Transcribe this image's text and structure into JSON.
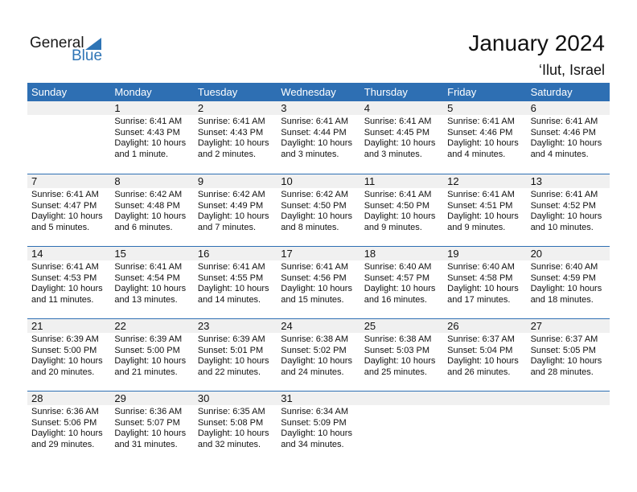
{
  "logo": {
    "general": "General",
    "blue": "Blue"
  },
  "title": "January 2024",
  "location": "‘Ilut, Israel",
  "colors": {
    "header": "#2e6fb3",
    "logo_blue": "#2e74b5"
  },
  "days": [
    "Sunday",
    "Monday",
    "Tuesday",
    "Wednesday",
    "Thursday",
    "Friday",
    "Saturday"
  ],
  "first_weekday": 1,
  "entries": [
    {
      "d": 1,
      "sr": "6:41 AM",
      "ss": "4:43 PM",
      "dl": "10 hours",
      "m": "and 1 minute."
    },
    {
      "d": 2,
      "sr": "6:41 AM",
      "ss": "4:43 PM",
      "dl": "10 hours",
      "m": "and 2 minutes."
    },
    {
      "d": 3,
      "sr": "6:41 AM",
      "ss": "4:44 PM",
      "dl": "10 hours",
      "m": "and 3 minutes."
    },
    {
      "d": 4,
      "sr": "6:41 AM",
      "ss": "4:45 PM",
      "dl": "10 hours",
      "m": "and 3 minutes."
    },
    {
      "d": 5,
      "sr": "6:41 AM",
      "ss": "4:46 PM",
      "dl": "10 hours",
      "m": "and 4 minutes."
    },
    {
      "d": 6,
      "sr": "6:41 AM",
      "ss": "4:46 PM",
      "dl": "10 hours",
      "m": "and 4 minutes."
    },
    {
      "d": 7,
      "sr": "6:41 AM",
      "ss": "4:47 PM",
      "dl": "10 hours",
      "m": "and 5 minutes."
    },
    {
      "d": 8,
      "sr": "6:42 AM",
      "ss": "4:48 PM",
      "dl": "10 hours",
      "m": "and 6 minutes."
    },
    {
      "d": 9,
      "sr": "6:42 AM",
      "ss": "4:49 PM",
      "dl": "10 hours",
      "m": "and 7 minutes."
    },
    {
      "d": 10,
      "sr": "6:42 AM",
      "ss": "4:50 PM",
      "dl": "10 hours",
      "m": "and 8 minutes."
    },
    {
      "d": 11,
      "sr": "6:41 AM",
      "ss": "4:50 PM",
      "dl": "10 hours",
      "m": "and 9 minutes."
    },
    {
      "d": 12,
      "sr": "6:41 AM",
      "ss": "4:51 PM",
      "dl": "10 hours",
      "m": "and 9 minutes."
    },
    {
      "d": 13,
      "sr": "6:41 AM",
      "ss": "4:52 PM",
      "dl": "10 hours",
      "m": "and 10 minutes."
    },
    {
      "d": 14,
      "sr": "6:41 AM",
      "ss": "4:53 PM",
      "dl": "10 hours",
      "m": "and 11 minutes."
    },
    {
      "d": 15,
      "sr": "6:41 AM",
      "ss": "4:54 PM",
      "dl": "10 hours",
      "m": "and 13 minutes."
    },
    {
      "d": 16,
      "sr": "6:41 AM",
      "ss": "4:55 PM",
      "dl": "10 hours",
      "m": "and 14 minutes."
    },
    {
      "d": 17,
      "sr": "6:41 AM",
      "ss": "4:56 PM",
      "dl": "10 hours",
      "m": "and 15 minutes."
    },
    {
      "d": 18,
      "sr": "6:40 AM",
      "ss": "4:57 PM",
      "dl": "10 hours",
      "m": "and 16 minutes."
    },
    {
      "d": 19,
      "sr": "6:40 AM",
      "ss": "4:58 PM",
      "dl": "10 hours",
      "m": "and 17 minutes."
    },
    {
      "d": 20,
      "sr": "6:40 AM",
      "ss": "4:59 PM",
      "dl": "10 hours",
      "m": "and 18 minutes."
    },
    {
      "d": 21,
      "sr": "6:39 AM",
      "ss": "5:00 PM",
      "dl": "10 hours",
      "m": "and 20 minutes."
    },
    {
      "d": 22,
      "sr": "6:39 AM",
      "ss": "5:00 PM",
      "dl": "10 hours",
      "m": "and 21 minutes."
    },
    {
      "d": 23,
      "sr": "6:39 AM",
      "ss": "5:01 PM",
      "dl": "10 hours",
      "m": "and 22 minutes."
    },
    {
      "d": 24,
      "sr": "6:38 AM",
      "ss": "5:02 PM",
      "dl": "10 hours",
      "m": "and 24 minutes."
    },
    {
      "d": 25,
      "sr": "6:38 AM",
      "ss": "5:03 PM",
      "dl": "10 hours",
      "m": "and 25 minutes."
    },
    {
      "d": 26,
      "sr": "6:37 AM",
      "ss": "5:04 PM",
      "dl": "10 hours",
      "m": "and 26 minutes."
    },
    {
      "d": 27,
      "sr": "6:37 AM",
      "ss": "5:05 PM",
      "dl": "10 hours",
      "m": "and 28 minutes."
    },
    {
      "d": 28,
      "sr": "6:36 AM",
      "ss": "5:06 PM",
      "dl": "10 hours",
      "m": "and 29 minutes."
    },
    {
      "d": 29,
      "sr": "6:36 AM",
      "ss": "5:07 PM",
      "dl": "10 hours",
      "m": "and 31 minutes."
    },
    {
      "d": 30,
      "sr": "6:35 AM",
      "ss": "5:08 PM",
      "dl": "10 hours",
      "m": "and 32 minutes."
    },
    {
      "d": 31,
      "sr": "6:34 AM",
      "ss": "5:09 PM",
      "dl": "10 hours",
      "m": "and 34 minutes."
    }
  ],
  "labels": {
    "sunrise": "Sunrise:",
    "sunset": "Sunset:",
    "daylight": "Daylight:"
  }
}
